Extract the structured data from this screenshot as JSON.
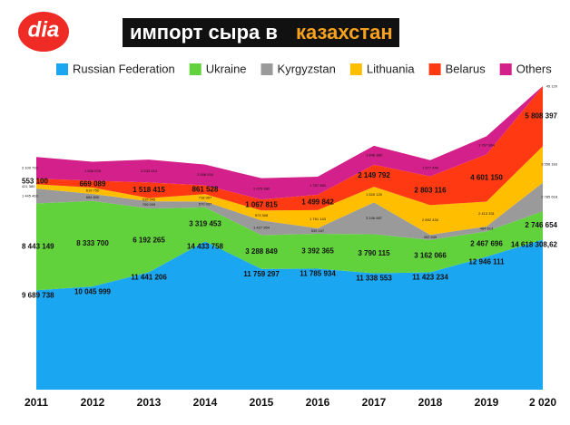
{
  "logo": "dia",
  "chart_data": {
    "type": "stacked-area",
    "title": "импорт сыра в",
    "title_highlight": "казахстан",
    "categories": [
      "2011",
      "2012",
      "2013",
      "2014",
      "2015",
      "2016",
      "2017",
      "2018",
      "2019",
      "2 020"
    ],
    "series": [
      {
        "name": "Russian Federation",
        "color": "#1ba6f2",
        "values": [
          9689738,
          10045999,
          11441206,
          14433758,
          11759297,
          11785934,
          11338553,
          11423234,
          12946111,
          14618308.62
        ],
        "value_labels": [
          "9 689 738",
          "10 045 999",
          "11 441 206",
          "14 433 758",
          "11 759 297",
          "11 785 934",
          "11 338 553",
          "11 423 234",
          "12 946 111",
          "14 618 308,62"
        ]
      },
      {
        "name": "Ukraine",
        "color": "#62d23c",
        "values": [
          8443149,
          8333700,
          6192265,
          3319453,
          3288849,
          3392365,
          3790115,
          3162066,
          2467696,
          2746654
        ],
        "value_labels": [
          "8 443 149",
          "8 333 700",
          "6 192 265",
          "3 319 453",
          "3 288 849",
          "3 392 365",
          "3 790 115",
          "3 162 066",
          "2 467 696",
          "2 746 654"
        ]
      },
      {
        "name": "Kyrgyzstan",
        "color": "#9a9a9a",
        "values": [
          1445463,
          684800,
          706009,
          570937,
          1427954,
          539167,
          3106987,
          492535,
          484613,
          2785618
        ],
        "value_labels": [
          "1 445 463",
          "684 800",
          "706 009",
          "570 937",
          "1 427 954",
          "539 167",
          "3 106 987",
          "492 535",
          "484 613",
          "2 785 618"
        ]
      },
      {
        "name": "Lithuania",
        "color": "#ffbf00",
        "values": [
          421380,
          619750,
          315345,
          718907,
          973308,
          1761143,
          1520125,
          2892434,
          2413331,
          3558183
        ],
        "value_labels": [
          "421 380",
          "619 750",
          "315 345",
          "718 907",
          "973 308",
          "1 761 143",
          "1 520 125",
          "2 892 434",
          "2 413 331",
          "3 558 183"
        ]
      },
      {
        "name": "Belarus",
        "color": "#ff3a12",
        "values": [
          553100,
          669089,
          1518415,
          861528,
          1067815,
          1499842,
          2149792,
          2803116,
          4601150,
          5808397
        ],
        "value_labels": [
          "553 100",
          "669 089",
          "1 518 415",
          "861 528",
          "1 067 815",
          "1 499 842",
          "2 149 792",
          "2 803 116",
          "4 601 150",
          "5 808 397"
        ]
      },
      {
        "name": "Others",
        "color": "#d4208a",
        "values": [
          2100792,
          1836078,
          2233213,
          2008534,
          2075380,
          1757983,
          1848380,
          1577446,
          1767864,
          45120
        ],
        "value_labels": [
          "2 100 792",
          "1 836 078",
          "2 233 213",
          "2 008 534",
          "2 075 380",
          "1 757 983",
          "1 848 380",
          "1 577 446",
          "1 767 864",
          "45 120"
        ]
      }
    ]
  }
}
